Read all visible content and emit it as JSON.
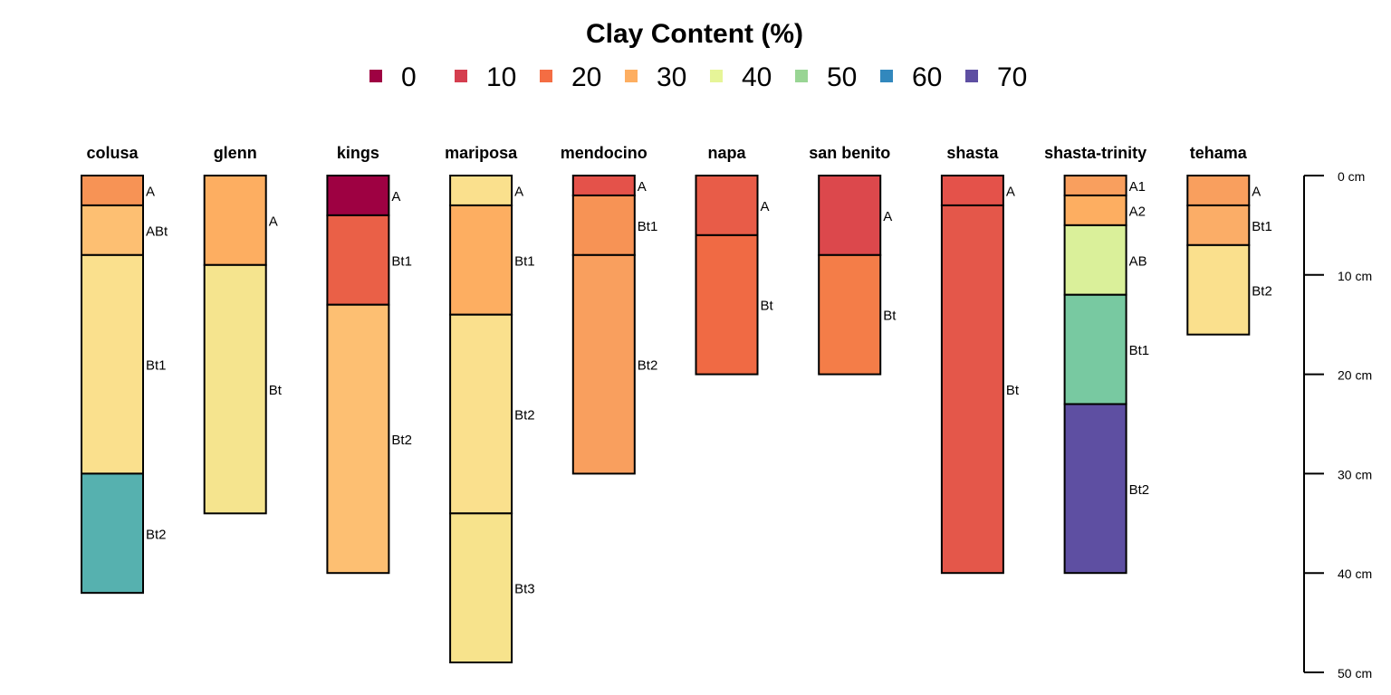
{
  "chart_data": {
    "type": "soil-profile",
    "title": "Clay Content (%)",
    "legend": {
      "position": "top",
      "entries": [
        {
          "label": "0",
          "color": "#9E0142"
        },
        {
          "label": "10",
          "color": "#D53E4F"
        },
        {
          "label": "20",
          "color": "#F46D43"
        },
        {
          "label": "30",
          "color": "#FDAE61"
        },
        {
          "label": "40",
          "color": "#E6F598"
        },
        {
          "label": "50",
          "color": "#99D594"
        },
        {
          "label": "60",
          "color": "#3288BD"
        },
        {
          "label": "70",
          "color": "#5E4FA2"
        }
      ]
    },
    "depth_axis": {
      "unit": "cm",
      "range": [
        0,
        50
      ],
      "ticks": [
        "0 cm",
        "10 cm",
        "20 cm",
        "30 cm",
        "40 cm",
        "50 cm"
      ]
    },
    "profiles": [
      {
        "name": "colusa",
        "horizons": [
          {
            "name": "A",
            "top": 0,
            "bottom": 3,
            "color": "#F79355"
          },
          {
            "name": "ABt",
            "top": 3,
            "bottom": 8,
            "color": "#FDBF72"
          },
          {
            "name": "Bt1",
            "top": 8,
            "bottom": 30,
            "color": "#FAE08D"
          },
          {
            "name": "Bt2",
            "top": 30,
            "bottom": 42,
            "color": "#56B1AF"
          }
        ]
      },
      {
        "name": "glenn",
        "horizons": [
          {
            "name": "A",
            "top": 0,
            "bottom": 9,
            "color": "#FDAE61"
          },
          {
            "name": "Bt",
            "top": 9,
            "bottom": 34,
            "color": "#F5E48E"
          }
        ]
      },
      {
        "name": "kings",
        "horizons": [
          {
            "name": "A",
            "top": 0,
            "bottom": 4,
            "color": "#9E0142"
          },
          {
            "name": "Bt1",
            "top": 4,
            "bottom": 13,
            "color": "#EA6047"
          },
          {
            "name": "Bt2",
            "top": 13,
            "bottom": 40,
            "color": "#FDBF72"
          }
        ]
      },
      {
        "name": "mariposa",
        "horizons": [
          {
            "name": "A",
            "top": 0,
            "bottom": 3,
            "color": "#FAE08D"
          },
          {
            "name": "Bt1",
            "top": 3,
            "bottom": 14,
            "color": "#FDAE61"
          },
          {
            "name": "Bt2",
            "top": 14,
            "bottom": 34,
            "color": "#FAE08D"
          },
          {
            "name": "Bt3",
            "top": 34,
            "bottom": 49,
            "color": "#F7E38C"
          }
        ]
      },
      {
        "name": "mendocino",
        "horizons": [
          {
            "name": "A",
            "top": 0,
            "bottom": 2,
            "color": "#E4524A"
          },
          {
            "name": "Bt1",
            "top": 2,
            "bottom": 8,
            "color": "#F79355"
          },
          {
            "name": "Bt2",
            "top": 8,
            "bottom": 30,
            "color": "#F99F5E"
          }
        ]
      },
      {
        "name": "napa",
        "horizons": [
          {
            "name": "A",
            "top": 0,
            "bottom": 6,
            "color": "#E85C48"
          },
          {
            "name": "Bt",
            "top": 6,
            "bottom": 20,
            "color": "#F06A44"
          }
        ]
      },
      {
        "name": "san benito",
        "horizons": [
          {
            "name": "A",
            "top": 0,
            "bottom": 8,
            "color": "#DC484C"
          },
          {
            "name": "Bt",
            "top": 8,
            "bottom": 20,
            "color": "#F47D48"
          }
        ]
      },
      {
        "name": "shasta",
        "horizons": [
          {
            "name": "A",
            "top": 0,
            "bottom": 3,
            "color": "#E4524A"
          },
          {
            "name": "Bt",
            "top": 3,
            "bottom": 40,
            "color": "#E4574A"
          }
        ]
      },
      {
        "name": "shasta-trinity",
        "horizons": [
          {
            "name": "A1",
            "top": 0,
            "bottom": 2,
            "color": "#F99F5E"
          },
          {
            "name": "A2",
            "top": 2,
            "bottom": 5,
            "color": "#FDAE61"
          },
          {
            "name": "AB",
            "top": 5,
            "bottom": 12,
            "color": "#DAF09A"
          },
          {
            "name": "Bt1",
            "top": 12,
            "bottom": 23,
            "color": "#78C9A1"
          },
          {
            "name": "Bt2",
            "top": 23,
            "bottom": 40,
            "color": "#5E4FA2"
          }
        ]
      },
      {
        "name": "tehama",
        "horizons": [
          {
            "name": "A",
            "top": 0,
            "bottom": 3,
            "color": "#F99F5E"
          },
          {
            "name": "Bt1",
            "top": 3,
            "bottom": 7,
            "color": "#FBAD67"
          },
          {
            "name": "Bt2",
            "top": 7,
            "bottom": 16,
            "color": "#FAE08D"
          }
        ]
      }
    ]
  }
}
